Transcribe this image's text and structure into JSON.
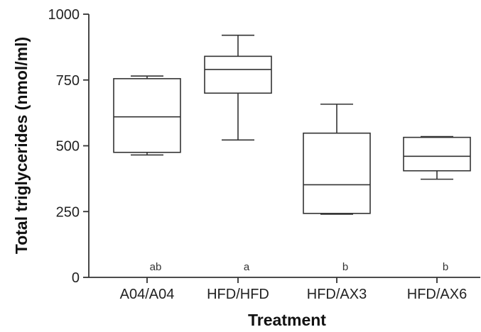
{
  "chart_data": {
    "type": "box",
    "title": "",
    "xlabel": "Treatment",
    "ylabel": "Total triglycerides (nmol/ml)",
    "ylim": [
      0,
      1000
    ],
    "yticks": [
      0,
      250,
      500,
      750,
      1000
    ],
    "grid": false,
    "legend": "none",
    "categories": [
      "A04/A04",
      "HFD/HFD",
      "HFD/AX3",
      "HFD/AX6"
    ],
    "boxes": [
      {
        "category": "A04/A04",
        "min": 465,
        "q1": 475,
        "median": 610,
        "q3": 755,
        "max": 765,
        "letter": "ab"
      },
      {
        "category": "HFD/HFD",
        "min": 522,
        "q1": 700,
        "median": 790,
        "q3": 840,
        "max": 920,
        "letter": "a"
      },
      {
        "category": "HFD/AX3",
        "min": 240,
        "q1": 243,
        "median": 352,
        "q3": 548,
        "max": 658,
        "letter": "b"
      },
      {
        "category": "HFD/AX6",
        "min": 373,
        "q1": 405,
        "median": 460,
        "q3": 532,
        "max": 535,
        "letter": "b"
      }
    ],
    "colors": {
      "stroke": "#333333",
      "fill": "#ffffff",
      "axis": "#333333"
    }
  }
}
